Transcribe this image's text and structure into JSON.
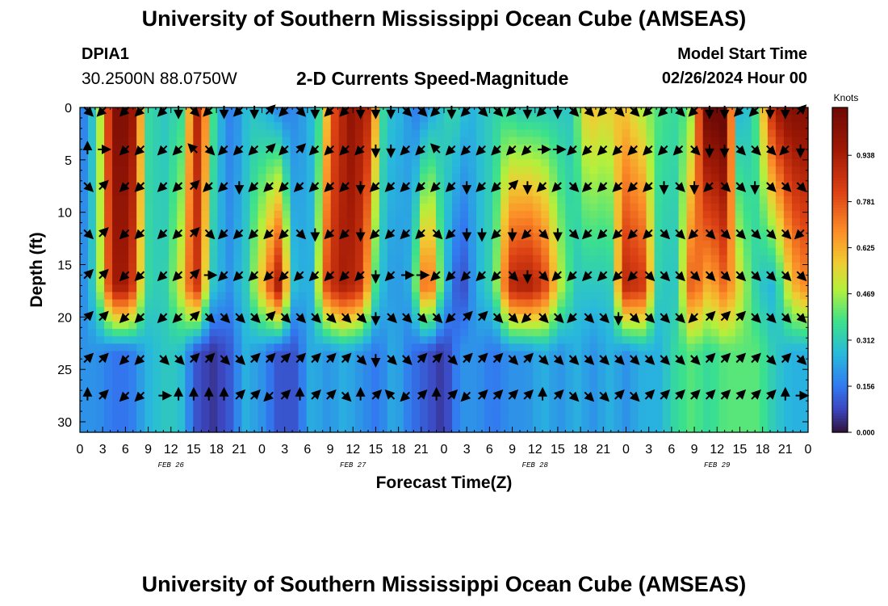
{
  "page": {
    "title_top": "University of Southern Mississippi Ocean Cube (AMSEAS)",
    "title_bottom": "University of Southern Mississippi Ocean Cube (AMSEAS)",
    "station_id": "DPIA1",
    "station_coords": "30.2500N  88.0750W",
    "subtitle": "2-D Currents Speed-Magnitude",
    "model_start_label": "Model Start Time",
    "model_start_value": "02/26/2024 Hour 00"
  },
  "chart_data": {
    "type": "heatmap",
    "title": "2-D Currents Speed-Magnitude",
    "xlabel": "Forecast Time(Z)",
    "ylabel": "Depth (ft)",
    "x_range_hours": [
      0,
      96
    ],
    "y_range_ft": [
      0,
      31
    ],
    "x_tick_step_hours": 3,
    "x_tick_labels": [
      "0",
      "3",
      "6",
      "9",
      "12",
      "15",
      "18",
      "21",
      "0",
      "3",
      "6",
      "9",
      "12",
      "15",
      "18",
      "21",
      "0",
      "3",
      "6",
      "9",
      "12",
      "15",
      "18",
      "21",
      "0",
      "3",
      "6",
      "9",
      "12",
      "15",
      "18",
      "21",
      "0"
    ],
    "y_ticks": [
      0,
      5,
      10,
      15,
      20,
      25,
      30
    ],
    "y_tick_labels": [
      "0",
      "5",
      "10",
      "15",
      "20",
      "25",
      "30"
    ],
    "date_labels": [
      {
        "text": "FEB 26",
        "hour": 12
      },
      {
        "text": "FEB 27",
        "hour": 36
      },
      {
        "text": "FEB 28",
        "hour": 60
      },
      {
        "text": "FEB 29",
        "hour": 84
      }
    ],
    "colorbar": {
      "unit": "Knots",
      "min": 0.0,
      "max": 1.1,
      "tick_values": [
        0.0,
        0.156,
        0.312,
        0.469,
        0.625,
        0.781,
        0.938
      ],
      "tick_labels": [
        "0.000",
        "0.156",
        "0.312",
        "0.469",
        "0.625",
        "0.781",
        "0.938"
      ]
    },
    "speed_at_surface_knots": [
      0.12,
      0.35,
      1.05,
      1.05,
      0.35,
      0.3,
      0.35,
      0.95,
      0.3,
      0.15,
      0.3,
      0.25,
      0.15,
      0.2,
      0.3,
      0.8,
      1.0,
      0.9,
      0.3,
      0.25,
      0.15,
      0.25,
      0.35,
      0.25,
      0.3,
      0.35,
      0.3,
      0.3,
      0.3,
      0.3,
      0.6,
      0.55,
      0.6,
      0.5,
      0.4,
      0.35,
      0.4,
      1.1,
      1.15,
      0.2,
      0.4,
      0.95,
      1.05,
      1.05
    ],
    "speed_at_mid_depth_knots": [
      0.15,
      0.35,
      0.95,
      0.95,
      0.35,
      0.3,
      0.5,
      0.9,
      0.3,
      0.2,
      0.3,
      0.6,
      0.95,
      0.25,
      0.25,
      0.85,
      0.95,
      0.85,
      0.3,
      0.2,
      0.25,
      0.85,
      0.3,
      0.05,
      0.25,
      0.35,
      0.9,
      0.95,
      0.85,
      0.5,
      0.3,
      0.3,
      0.3,
      0.9,
      0.85,
      0.3,
      0.3,
      0.8,
      0.6,
      0.75,
      0.5,
      0.3,
      0.25,
      0.6,
      0.7
    ],
    "speed_at_bottom_knots": [
      0.2,
      0.2,
      0.15,
      0.15,
      0.25,
      0.3,
      0.3,
      0.1,
      0.05,
      0.1,
      0.25,
      0.2,
      0.1,
      0.1,
      0.25,
      0.2,
      0.25,
      0.2,
      0.15,
      0.25,
      0.15,
      0.1,
      0.05,
      0.2,
      0.2,
      0.15,
      0.2,
      0.2,
      0.25,
      0.2,
      0.25,
      0.2,
      0.25,
      0.2,
      0.25,
      0.25,
      0.35,
      0.4,
      0.35,
      0.4,
      0.4,
      0.4,
      0.3,
      0.25,
      0.25
    ],
    "arrow_grid": {
      "hours": [
        1,
        3,
        6,
        8,
        11,
        13,
        15,
        17,
        19,
        21,
        23,
        25,
        27,
        29,
        31,
        33,
        35,
        37,
        39,
        41,
        43,
        45,
        47,
        49,
        51,
        53,
        55,
        57,
        59,
        61,
        63,
        65,
        67,
        69,
        71,
        73,
        75,
        77,
        79,
        81,
        83,
        85,
        87,
        89,
        91,
        93,
        95
      ],
      "depths_ft": [
        0.3,
        4,
        7.5,
        12,
        16,
        20,
        24,
        27.5
      ],
      "direction_rows": [
        "SE,SW,SW,SW,SW,S,SE,SW,S,SW,S,NE,SW,SE,S,SW,SW,S,S,S,SE,SE,SW,S,SW,SE,SE,SW,S,SW,S,SE,SE,SW,SE,SE,SW,SW,SE,SW,S,S,SW,SW,S,S,NE",
        "N,E,SW,SW,SW,SW,NW,SE,SW,SW,SW,NE,SW,NE,SW,SW,SW,SW,S,S,SW,SW,NW,SW,SW,SW,SW,SW,SW,E,E,SW,SW,SW,SW,SW,SW,SW,SW,SE,S,S,SE,SE,SE,SW,S",
        "SE,NE,SW,SW,SW,SW,NE,SW,SW,S,SW,SW,SW,SW,SW,SW,SW,S,SW,SW,SW,SW,SW,SW,S,SW,SW,NE,S,SW,SW,SE,SW,SW,SW,SW,SW,S,SE,S,SW,SE,SE,S,SE,SE,SE",
        "SE,NE,SW,SW,SW,SW,NE,SE,SW,SW,SW,SW,SW,SE,S,SW,SW,S,SW,SW,SW,SW,SE,SW,S,S,SW,S,SW,SE,S,SE,SW,SW,SW,SW,SW,SE,SE,SW,SE,SE,SE,SE,SE,SE,SW",
        "NE,NE,SW,SW,SW,SW,NE,E,SW,SW,SW,SW,SW,SW,SW,SW,SW,SW,S,SW,E,E,SW,SW,SW,SW,SW,SE,S,SE,SW,SW,SW,SW,SW,SW,SE,SE,SE,SE,SE,SE,SE,SE,SE,SE,SE",
        "NE,NE,SW,SW,SW,SW,NE,SE,SE,SE,SE,NE,SE,SE,SE,SE,SE,SE,S,SE,SE,SE,SE,SW,NE,NE,SE,SE,SW,SE,SE,SW,SE,SE,S,SE,SE,SE,SE,SW,NE,NE,NE,SE,SE,SE,SE",
        "NE,NE,SW,SW,SE,SE,NE,NE,SE,SE,NE,NE,NE,NE,NE,NE,NE,SE,S,SE,SE,NE,NE,SE,NE,NE,NE,SE,NE,SE,SE,SE,SE,SE,SE,SE,SE,SE,SE,SE,NE,NE,NE,NE,SE,NE,SE",
        "N,NE,SW,SW,E,N,N,N,N,NE,NE,SW,NE,N,NE,NE,SE,N,NE,NW,SW,NE,N,NE,SW,NE,NE,NE,NE,N,NE,SE,SE,SE,NE,SE,NE,NE,NE,NE,NE,NE,NE,NE,NE,N,E"
      ]
    }
  }
}
